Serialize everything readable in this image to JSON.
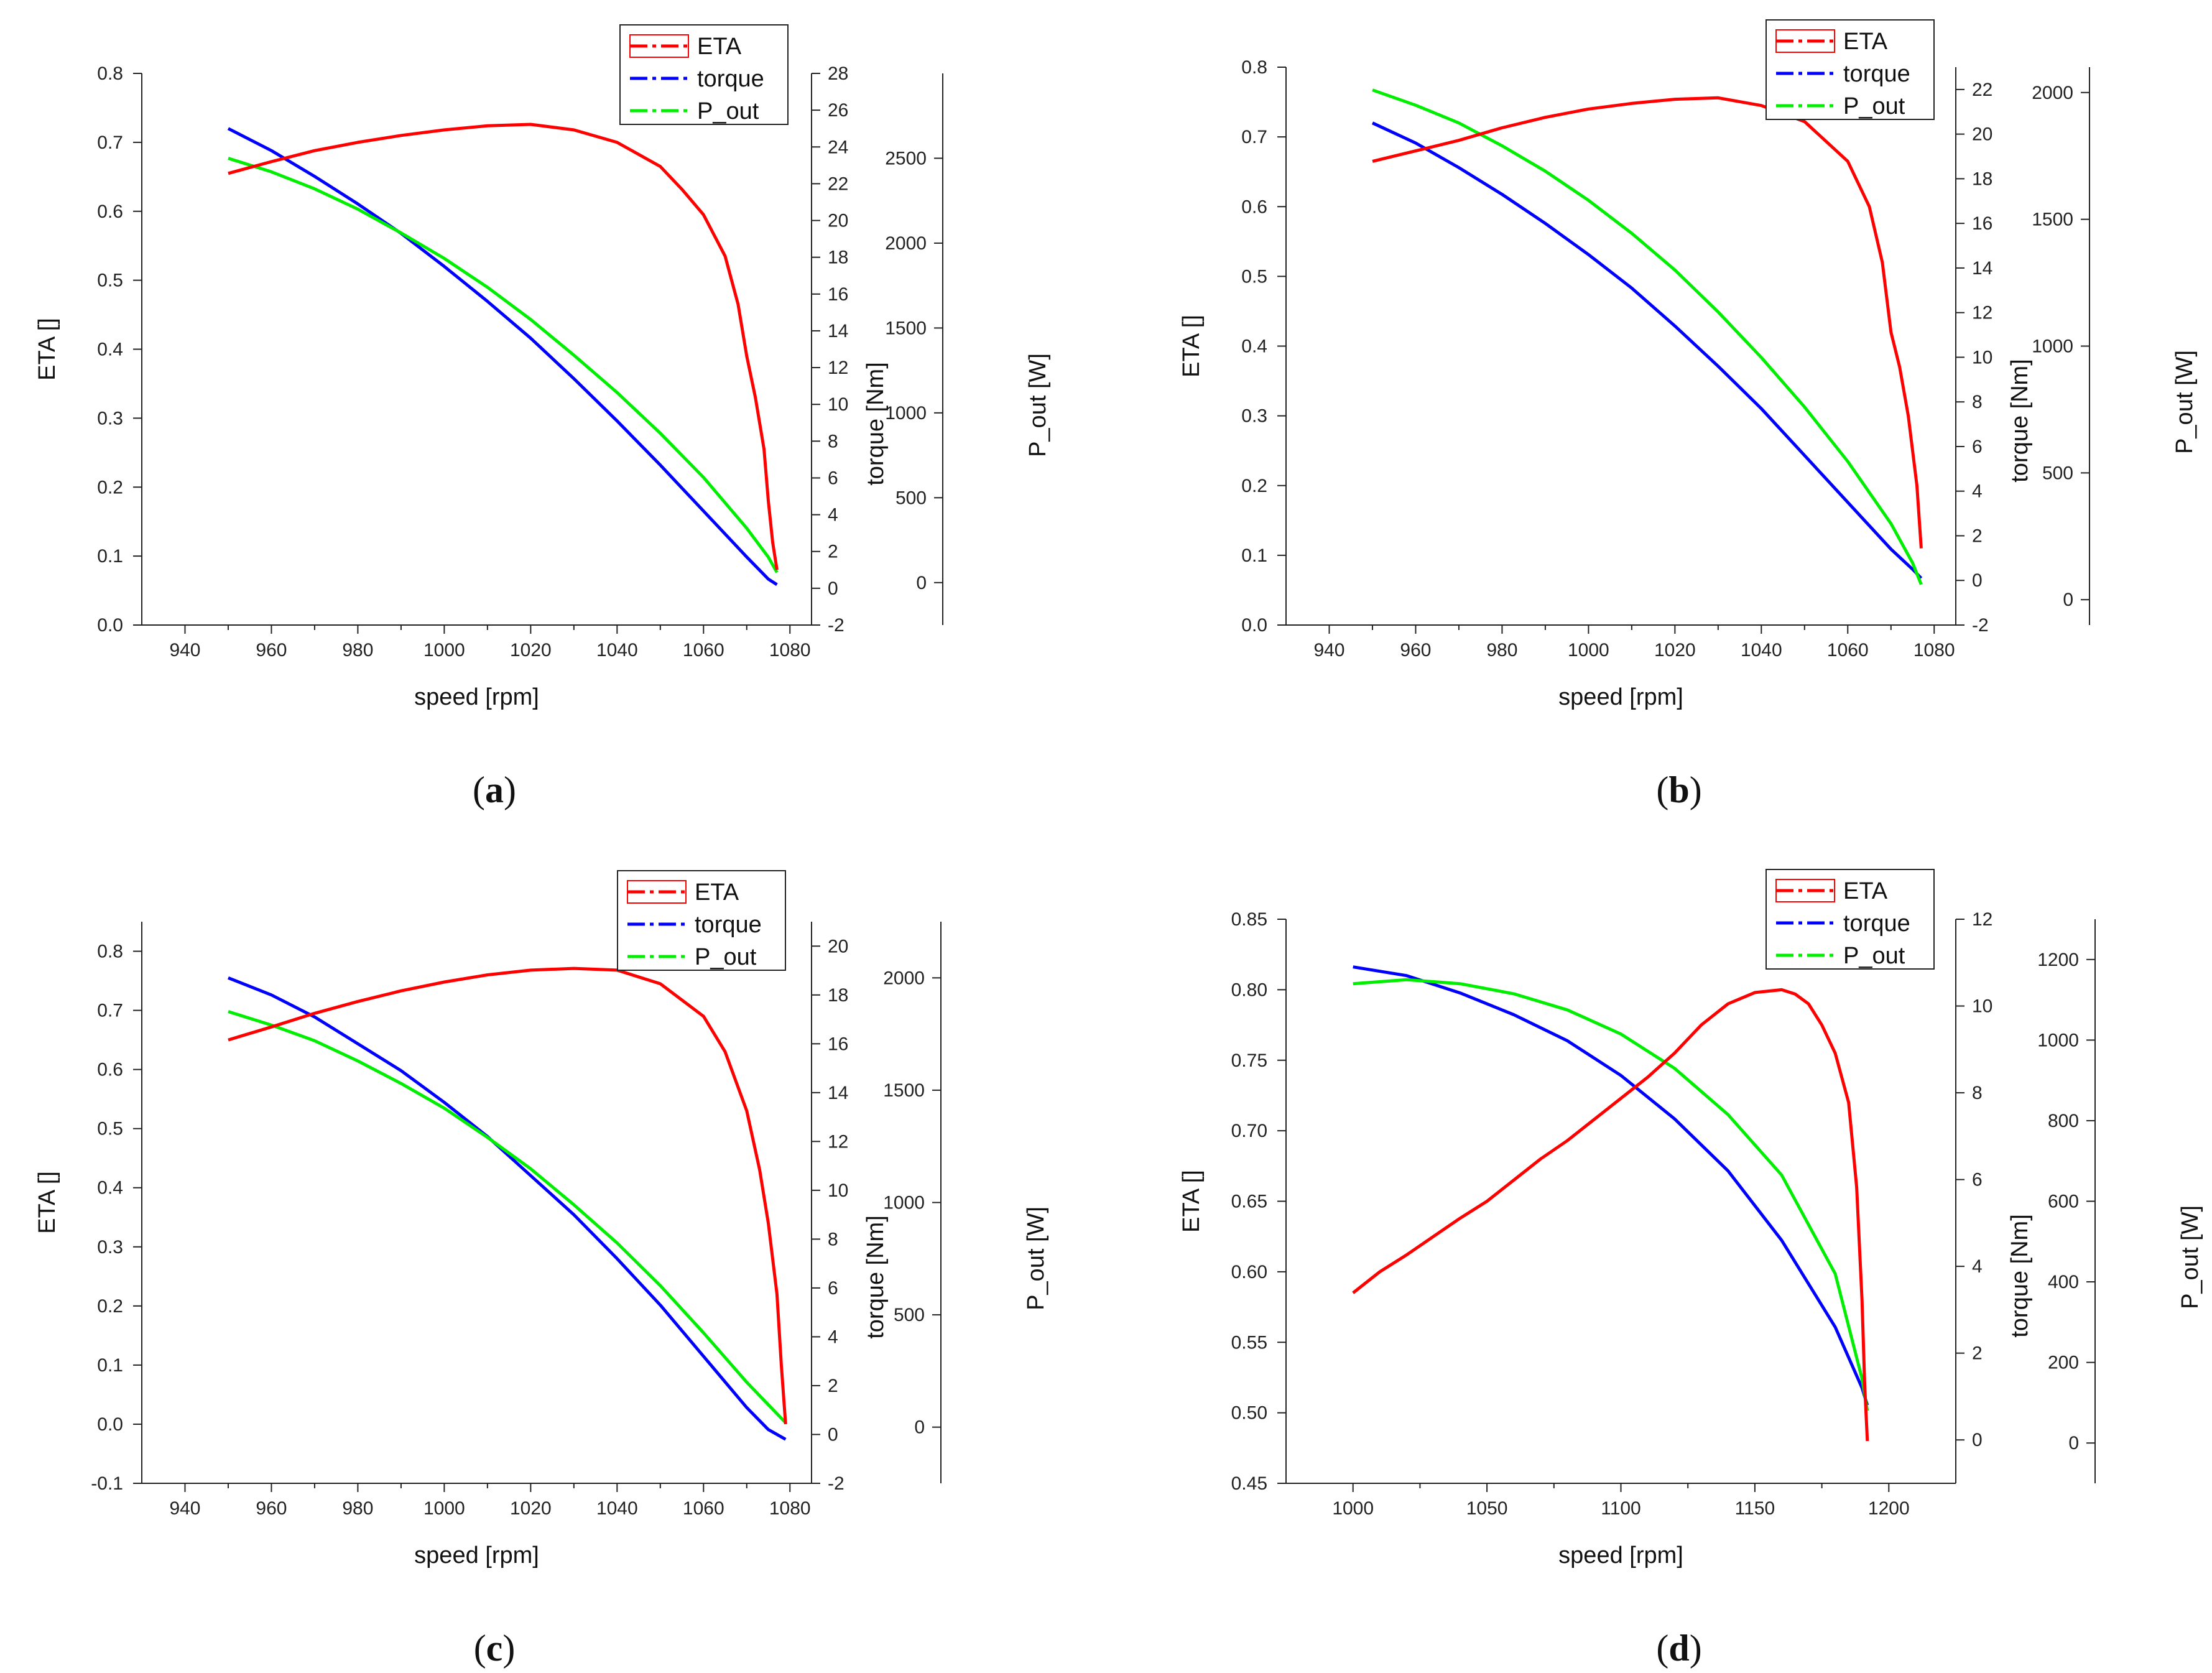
{
  "colors": {
    "ETA": "#ff0000",
    "torque": "#0000ff",
    "P_out": "#00ee00",
    "axis": "#222222"
  },
  "chart_data": [
    {
      "id": "a",
      "type": "line",
      "panel_label": "a",
      "xlabel": "speed [rpm]",
      "ylabel": "ETA []",
      "y2label": "torque [Nm]",
      "y3label": "P_out [W]",
      "xlim": [
        930,
        1085
      ],
      "ylim": [
        0.0,
        0.8
      ],
      "y2lim": [
        -2,
        28
      ],
      "y3lim": [
        -250,
        3000
      ],
      "xticks": [
        940,
        960,
        980,
        1000,
        1020,
        1040,
        1060,
        1080
      ],
      "yticks": [
        "0.0",
        "0.1",
        "0.2",
        "0.3",
        "0.4",
        "0.5",
        "0.6",
        "0.7",
        "0.8"
      ],
      "y2ticks": [
        -2,
        0,
        2,
        4,
        6,
        8,
        10,
        12,
        14,
        16,
        18,
        20,
        22,
        24,
        26,
        28
      ],
      "y3ticks": [
        0,
        500,
        1000,
        1500,
        2000,
        2500
      ],
      "legend": [
        "ETA",
        "torque",
        "P_out"
      ],
      "series": [
        {
          "name": "ETA",
          "axis": "y",
          "x": [
            950,
            960,
            970,
            980,
            990,
            1000,
            1010,
            1020,
            1030,
            1040,
            1050,
            1055,
            1060,
            1065,
            1068,
            1070,
            1072,
            1074,
            1075,
            1076,
            1077
          ],
          "y": [
            0.655,
            0.672,
            0.688,
            0.7,
            0.71,
            0.718,
            0.724,
            0.726,
            0.718,
            0.7,
            0.665,
            0.632,
            0.595,
            0.535,
            0.465,
            0.39,
            0.33,
            0.255,
            0.18,
            0.12,
            0.08
          ]
        },
        {
          "name": "torque",
          "axis": "y2",
          "x": [
            950,
            960,
            970,
            980,
            990,
            1000,
            1010,
            1020,
            1030,
            1040,
            1050,
            1060,
            1070,
            1075,
            1077
          ],
          "y": [
            25.0,
            23.8,
            22.4,
            20.9,
            19.3,
            17.5,
            15.6,
            13.6,
            11.4,
            9.1,
            6.7,
            4.2,
            1.7,
            0.5,
            0.2
          ]
        },
        {
          "name": "P_out",
          "axis": "y3",
          "x": [
            950,
            960,
            970,
            980,
            990,
            1000,
            1010,
            1020,
            1030,
            1040,
            1050,
            1060,
            1070,
            1075,
            1077
          ],
          "y": [
            2500,
            2420,
            2320,
            2200,
            2060,
            1910,
            1740,
            1550,
            1340,
            1120,
            880,
            620,
            320,
            150,
            60
          ]
        }
      ]
    },
    {
      "id": "b",
      "type": "line",
      "panel_label": "b",
      "xlabel": "speed [rpm]",
      "ylabel": "ETA []",
      "y2label": "torque [Nm]",
      "y3label": "P_out [W]",
      "xlim": [
        930,
        1085
      ],
      "ylim": [
        0.0,
        0.8
      ],
      "y2lim": [
        -2,
        23
      ],
      "y3lim": [
        -100,
        2100
      ],
      "xticks": [
        940,
        960,
        980,
        1000,
        1020,
        1040,
        1060,
        1080
      ],
      "yticks": [
        "0.0",
        "0.1",
        "0.2",
        "0.3",
        "0.4",
        "0.5",
        "0.6",
        "0.7",
        "0.8"
      ],
      "y2ticks": [
        -2,
        0,
        2,
        4,
        6,
        8,
        10,
        12,
        14,
        16,
        18,
        20,
        22
      ],
      "y3ticks": [
        0,
        500,
        1000,
        1500,
        2000
      ],
      "legend": [
        "ETA",
        "torque",
        "P_out"
      ],
      "series": [
        {
          "name": "ETA",
          "axis": "y",
          "x": [
            950,
            960,
            970,
            980,
            990,
            1000,
            1010,
            1020,
            1030,
            1040,
            1050,
            1060,
            1065,
            1068,
            1070,
            1072,
            1074,
            1076,
            1077
          ],
          "y": [
            0.665,
            0.68,
            0.695,
            0.713,
            0.728,
            0.74,
            0.748,
            0.754,
            0.756,
            0.745,
            0.722,
            0.665,
            0.6,
            0.52,
            0.42,
            0.37,
            0.3,
            0.2,
            0.11
          ]
        },
        {
          "name": "torque",
          "axis": "y2",
          "x": [
            950,
            960,
            970,
            980,
            990,
            1000,
            1010,
            1020,
            1030,
            1040,
            1050,
            1060,
            1070,
            1075,
            1077
          ],
          "y": [
            20.5,
            19.6,
            18.5,
            17.3,
            16.0,
            14.6,
            13.1,
            11.4,
            9.6,
            7.7,
            5.6,
            3.5,
            1.4,
            0.5,
            0.1
          ]
        },
        {
          "name": "P_out",
          "axis": "y3",
          "x": [
            950,
            960,
            970,
            980,
            990,
            1000,
            1010,
            1020,
            1030,
            1040,
            1050,
            1060,
            1070,
            1075,
            1077
          ],
          "y": [
            2010,
            1950,
            1880,
            1790,
            1690,
            1575,
            1445,
            1300,
            1135,
            955,
            760,
            545,
            300,
            145,
            60
          ]
        }
      ]
    },
    {
      "id": "c",
      "type": "line",
      "panel_label": "c",
      "xlabel": "speed [rpm]",
      "ylabel": "ETA []",
      "y2label": "torque [Nm]",
      "y3label": "P_out [W]",
      "xlim": [
        930,
        1085
      ],
      "ylim": [
        -0.1,
        0.85
      ],
      "y2lim": [
        -2,
        21
      ],
      "y3lim": [
        -250,
        2250
      ],
      "xticks": [
        940,
        960,
        980,
        1000,
        1020,
        1040,
        1060,
        1080
      ],
      "yticks": [
        "-0.1",
        "0.0",
        "0.1",
        "0.2",
        "0.3",
        "0.4",
        "0.5",
        "0.6",
        "0.7",
        "0.8"
      ],
      "y2ticks": [
        -2,
        0,
        2,
        4,
        6,
        8,
        10,
        12,
        14,
        16,
        18,
        20
      ],
      "y3ticks": [
        0,
        500,
        1000,
        1500,
        2000
      ],
      "legend": [
        "ETA",
        "torque",
        "P_out"
      ],
      "series": [
        {
          "name": "ETA",
          "axis": "y",
          "x": [
            950,
            960,
            970,
            980,
            990,
            1000,
            1010,
            1020,
            1030,
            1040,
            1050,
            1060,
            1065,
            1070,
            1073,
            1075,
            1077,
            1078,
            1079
          ],
          "y": [
            0.65,
            0.672,
            0.695,
            0.715,
            0.733,
            0.748,
            0.76,
            0.768,
            0.771,
            0.768,
            0.745,
            0.69,
            0.63,
            0.53,
            0.43,
            0.34,
            0.22,
            0.1,
            0.0
          ]
        },
        {
          "name": "torque",
          "axis": "y2",
          "x": [
            950,
            960,
            970,
            980,
            990,
            1000,
            1010,
            1020,
            1030,
            1040,
            1050,
            1060,
            1070,
            1075,
            1079
          ],
          "y": [
            18.7,
            18.0,
            17.1,
            16.0,
            14.9,
            13.6,
            12.2,
            10.6,
            9.0,
            7.2,
            5.3,
            3.2,
            1.1,
            0.2,
            -0.2
          ]
        },
        {
          "name": "P_out",
          "axis": "y3",
          "x": [
            950,
            960,
            970,
            980,
            990,
            1000,
            1010,
            1020,
            1030,
            1040,
            1050,
            1060,
            1070,
            1075,
            1079
          ],
          "y": [
            1850,
            1790,
            1720,
            1630,
            1530,
            1420,
            1290,
            1150,
            990,
            820,
            630,
            420,
            200,
            100,
            20
          ]
        }
      ]
    },
    {
      "id": "d",
      "type": "line",
      "panel_label": "d",
      "xlabel": "speed [rpm]",
      "ylabel": "ETA []",
      "y2label": "torque [Nm]",
      "y3label": "P_out [W]",
      "xlim": [
        975,
        1225
      ],
      "ylim": [
        0.45,
        0.85
      ],
      "y2lim": [
        -1,
        12
      ],
      "y3lim": [
        -100,
        1300
      ],
      "xticks": [
        1000,
        1050,
        1100,
        1150,
        1200
      ],
      "yticks": [
        "0.45",
        "0.50",
        "0.55",
        "0.60",
        "0.65",
        "0.70",
        "0.75",
        "0.80",
        "0.85"
      ],
      "y2ticks": [
        0,
        2,
        4,
        6,
        8,
        10,
        12
      ],
      "y3ticks": [
        0,
        200,
        400,
        600,
        800,
        1000,
        1200
      ],
      "legend": [
        "ETA",
        "torque",
        "P_out"
      ],
      "series": [
        {
          "name": "ETA",
          "axis": "y",
          "x": [
            1000,
            1010,
            1020,
            1030,
            1040,
            1050,
            1060,
            1070,
            1080,
            1090,
            1100,
            1110,
            1120,
            1130,
            1140,
            1150,
            1160,
            1165,
            1170,
            1175,
            1180,
            1185,
            1188,
            1190,
            1191,
            1192
          ],
          "y": [
            0.585,
            0.6,
            0.612,
            0.625,
            0.638,
            0.65,
            0.665,
            0.68,
            0.693,
            0.708,
            0.723,
            0.738,
            0.755,
            0.775,
            0.79,
            0.798,
            0.8,
            0.797,
            0.79,
            0.775,
            0.755,
            0.72,
            0.66,
            0.58,
            0.52,
            0.48
          ]
        },
        {
          "name": "torque",
          "axis": "y2",
          "x": [
            1000,
            1020,
            1040,
            1060,
            1080,
            1100,
            1120,
            1140,
            1160,
            1180,
            1190,
            1192
          ],
          "y": [
            10.9,
            10.7,
            10.3,
            9.8,
            9.2,
            8.4,
            7.4,
            6.2,
            4.6,
            2.6,
            1.2,
            0.8
          ]
        },
        {
          "name": "P_out",
          "axis": "y3",
          "x": [
            1000,
            1020,
            1040,
            1060,
            1080,
            1100,
            1120,
            1140,
            1160,
            1180,
            1190,
            1192
          ],
          "y": [
            1140,
            1150,
            1140,
            1115,
            1075,
            1015,
            930,
            815,
            665,
            420,
            160,
            80
          ]
        }
      ]
    }
  ]
}
